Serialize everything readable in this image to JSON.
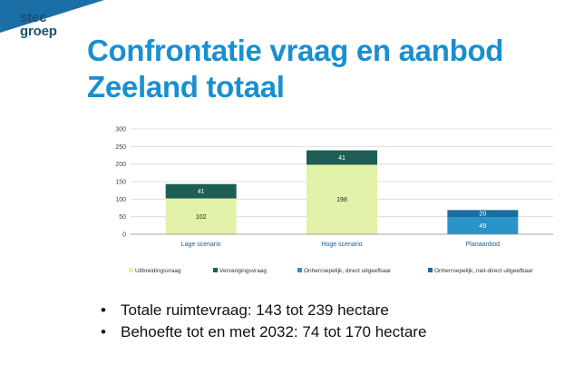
{
  "logo": {
    "line1": "stec",
    "line2": "groep"
  },
  "title": {
    "line1": "Confrontatie vraag en aanbod",
    "line2": "Zeeland totaal"
  },
  "chart_data": {
    "type": "bar",
    "stacked": true,
    "categories": [
      "Lage scenario",
      "Hoge scenario",
      "Planaanbod"
    ],
    "series": [
      {
        "name": "Uitbreidingsvraag",
        "color": "#e2f2a8",
        "values": [
          102,
          198,
          0
        ]
      },
      {
        "name": "Vervangingsvraag",
        "color": "#1e5e55",
        "values": [
          41,
          41,
          0
        ]
      },
      {
        "name": "Onherroepelijk, direct uitgeefbaar",
        "color": "#2a93c9",
        "values": [
          0,
          0,
          49
        ]
      },
      {
        "name": "Onherroepelijk, niet-direct uitgeefbaar",
        "color": "#1b6f9f",
        "values": [
          0,
          0,
          20
        ]
      }
    ],
    "ylim": [
      0,
      300
    ],
    "yticks": [
      0,
      50,
      100,
      150,
      200,
      250,
      300
    ],
    "grid": true,
    "legend_position": "bottom",
    "label_colors": [
      "#222222",
      "#ffffff",
      "#ffffff",
      "#ffffff"
    ]
  },
  "bullets": [
    "Totale ruimtevraag: 143 tot 239 hectare",
    "Behoefte tot en met 2032: 74 tot 170 hectare"
  ]
}
